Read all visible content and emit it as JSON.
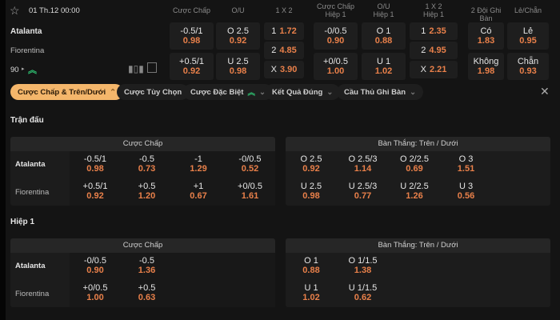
{
  "match": {
    "datetime": "01 Th.12 00:00",
    "home": "Atalanta",
    "away": "Fiorentina",
    "minute": "90"
  },
  "columns": [
    "Cược Chấp",
    "O/U",
    "1 X 2",
    "Cược Chấp\nHiệp 1",
    "O/U\nHiệp 1",
    "1 X 2\nHiệp 1",
    "2 Đội Ghi Bàn",
    "Lẻ/Chẵn"
  ],
  "top": {
    "handicap": [
      {
        "line": "-0.5/1",
        "odd": "0.98"
      },
      {
        "line": "+0.5/1",
        "odd": "0.92"
      }
    ],
    "ou": [
      {
        "line": "O 2.5",
        "odd": "0.92"
      },
      {
        "line": "U 2.5",
        "odd": "0.98"
      }
    ],
    "x12": [
      {
        "line": "1",
        "odd": "1.72"
      },
      {
        "line": "2",
        "odd": "4.85"
      },
      {
        "line": "X",
        "odd": "3.90"
      }
    ],
    "handicap_h1": [
      {
        "line": "-0/0.5",
        "odd": "0.90"
      },
      {
        "line": "+0/0.5",
        "odd": "1.00"
      }
    ],
    "ou_h1": [
      {
        "line": "O 1",
        "odd": "0.88"
      },
      {
        "line": "U 1",
        "odd": "1.02"
      }
    ],
    "x12_h1": [
      {
        "line": "1",
        "odd": "2.35"
      },
      {
        "line": "2",
        "odd": "4.95"
      },
      {
        "line": "X",
        "odd": "2.21"
      }
    ],
    "btts": [
      {
        "line": "Có",
        "odd": "1.83"
      },
      {
        "line": "Không",
        "odd": "1.98"
      }
    ],
    "oddeven": [
      {
        "line": "Lẻ",
        "odd": "0.95"
      },
      {
        "line": "Chẵn",
        "odd": "0.93"
      }
    ]
  },
  "filters": [
    "Cược Chấp & Trên/Dưới",
    "Cược Tùy Chọn",
    "Cược Đặc Biệt",
    "Kết Quả Đúng",
    "Cầu Thủ Ghi Bàn"
  ],
  "sections": [
    {
      "title": "Trận đấu",
      "tables": [
        {
          "title": "Cược Chấp",
          "rows": [
            [
              {
                "line": "-0.5/1",
                "odd": "0.98"
              },
              {
                "line": "-0.5",
                "odd": "0.73"
              },
              {
                "line": "-1",
                "odd": "1.29"
              },
              {
                "line": "-0/0.5",
                "odd": "0.52"
              }
            ],
            [
              {
                "line": "+0.5/1",
                "odd": "0.92"
              },
              {
                "line": "+0.5",
                "odd": "1.20"
              },
              {
                "line": "+1",
                "odd": "0.67"
              },
              {
                "line": "+0/0.5",
                "odd": "1.61"
              }
            ]
          ]
        },
        {
          "title": "Bàn Thắng: Trên / Dưới",
          "rows": [
            [
              {
                "line": "O 2.5",
                "odd": "0.92"
              },
              {
                "line": "O 2.5/3",
                "odd": "1.14"
              },
              {
                "line": "O 2/2.5",
                "odd": "0.69"
              },
              {
                "line": "O 3",
                "odd": "1.51"
              }
            ],
            [
              {
                "line": "U 2.5",
                "odd": "0.98"
              },
              {
                "line": "U 2.5/3",
                "odd": "0.77"
              },
              {
                "line": "U 2/2.5",
                "odd": "1.26"
              },
              {
                "line": "U 3",
                "odd": "0.56"
              }
            ]
          ]
        }
      ]
    },
    {
      "title": "Hiệp 1",
      "tables": [
        {
          "title": "Cược Chấp",
          "rows": [
            [
              {
                "line": "-0/0.5",
                "odd": "0.90"
              },
              {
                "line": "-0.5",
                "odd": "1.36"
              }
            ],
            [
              {
                "line": "+0/0.5",
                "odd": "1.00"
              },
              {
                "line": "+0.5",
                "odd": "0.63"
              }
            ]
          ]
        },
        {
          "title": "Bàn Thắng: Trên / Dưới",
          "rows": [
            [
              {
                "line": "O 1",
                "odd": "0.88"
              },
              {
                "line": "O 1/1.5",
                "odd": "1.38"
              }
            ],
            [
              {
                "line": "U 1",
                "odd": "1.02"
              },
              {
                "line": "U 1/1.5",
                "odd": "0.62"
              }
            ]
          ]
        }
      ]
    }
  ],
  "colors": {
    "odd": "#e9804a",
    "active_pill": "#f4b66b",
    "live_arrow": "#2fbf71"
  }
}
